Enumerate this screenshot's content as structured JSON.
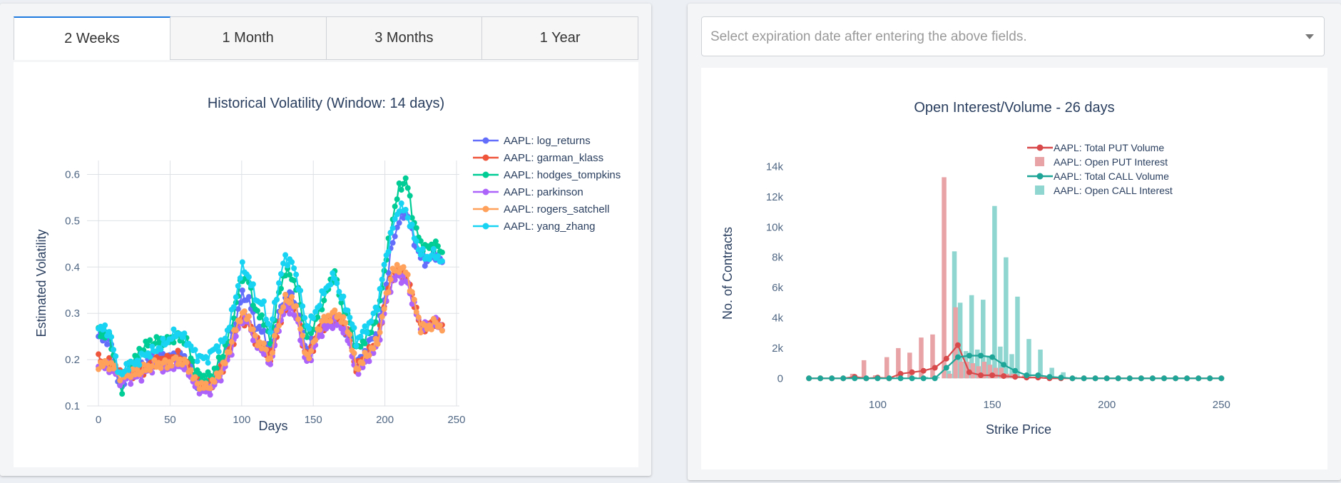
{
  "tabs": [
    {
      "label": "2 Weeks",
      "active": true
    },
    {
      "label": "1 Month",
      "active": false
    },
    {
      "label": "3 Months",
      "active": false
    },
    {
      "label": "1 Year",
      "active": false
    }
  ],
  "expiration_select": {
    "placeholder": "Select expiration date after entering the above fields."
  },
  "chart_data": [
    {
      "type": "line",
      "title": "Historical Volatility (Window: 14 days)",
      "xlabel": "Days",
      "ylabel": "Estimated Volatility",
      "xlim": [
        -8,
        252
      ],
      "ylim": [
        0.1,
        0.63
      ],
      "xticks": [
        0,
        50,
        100,
        150,
        200,
        250
      ],
      "yticks": [
        0.1,
        0.2,
        0.3,
        0.4,
        0.5,
        0.6
      ],
      "grid": true,
      "legend_position": "right",
      "markers": true,
      "keyframes_x": [
        0,
        8,
        12,
        16,
        20,
        25,
        32,
        40,
        48,
        55,
        62,
        68,
        75,
        80,
        88,
        95,
        100,
        105,
        110,
        115,
        120,
        125,
        130,
        135,
        140,
        145,
        150,
        155,
        160,
        165,
        170,
        175,
        180,
        185,
        190,
        195,
        200,
        205,
        210,
        215,
        220,
        225,
        230,
        235,
        240
      ],
      "series": [
        {
          "name": "AAPL: log_returns",
          "color": "#636efa",
          "values": [
            0.25,
            0.24,
            0.18,
            0.13,
            0.18,
            0.17,
            0.19,
            0.21,
            0.2,
            0.21,
            0.2,
            0.15,
            0.14,
            0.15,
            0.2,
            0.27,
            0.34,
            0.33,
            0.27,
            0.26,
            0.22,
            0.29,
            0.33,
            0.34,
            0.3,
            0.22,
            0.24,
            0.27,
            0.28,
            0.29,
            0.28,
            0.25,
            0.19,
            0.21,
            0.24,
            0.26,
            0.34,
            0.45,
            0.5,
            0.52,
            0.46,
            0.42,
            0.41,
            0.43,
            0.41
          ]
        },
        {
          "name": "AAPL: garman_klass",
          "color": "#ef553b",
          "values": [
            0.2,
            0.19,
            0.18,
            0.16,
            0.17,
            0.17,
            0.18,
            0.2,
            0.2,
            0.21,
            0.19,
            0.15,
            0.14,
            0.15,
            0.19,
            0.25,
            0.29,
            0.28,
            0.24,
            0.23,
            0.2,
            0.26,
            0.31,
            0.32,
            0.28,
            0.2,
            0.23,
            0.27,
            0.28,
            0.29,
            0.28,
            0.25,
            0.18,
            0.2,
            0.22,
            0.24,
            0.32,
            0.38,
            0.39,
            0.38,
            0.33,
            0.27,
            0.27,
            0.28,
            0.27
          ]
        },
        {
          "name": "AAPL: hodges_tompkins",
          "color": "#00cc96",
          "values": [
            0.26,
            0.25,
            0.18,
            0.13,
            0.18,
            0.2,
            0.23,
            0.24,
            0.24,
            0.25,
            0.24,
            0.17,
            0.16,
            0.17,
            0.22,
            0.3,
            0.38,
            0.37,
            0.3,
            0.29,
            0.24,
            0.33,
            0.39,
            0.38,
            0.34,
            0.25,
            0.27,
            0.31,
            0.35,
            0.39,
            0.31,
            0.29,
            0.22,
            0.24,
            0.26,
            0.3,
            0.4,
            0.5,
            0.57,
            0.59,
            0.5,
            0.45,
            0.44,
            0.45,
            0.43
          ]
        },
        {
          "name": "AAPL: parkinson",
          "color": "#ab63fa",
          "values": [
            0.19,
            0.18,
            0.17,
            0.15,
            0.16,
            0.16,
            0.17,
            0.19,
            0.18,
            0.19,
            0.18,
            0.14,
            0.13,
            0.14,
            0.18,
            0.24,
            0.29,
            0.28,
            0.23,
            0.22,
            0.19,
            0.26,
            0.31,
            0.31,
            0.27,
            0.19,
            0.22,
            0.26,
            0.27,
            0.28,
            0.27,
            0.24,
            0.17,
            0.19,
            0.21,
            0.23,
            0.31,
            0.37,
            0.38,
            0.37,
            0.32,
            0.27,
            0.27,
            0.28,
            0.27
          ]
        },
        {
          "name": "AAPL: rogers_satchell",
          "color": "#ffa15a",
          "values": [
            0.19,
            0.19,
            0.18,
            0.16,
            0.17,
            0.17,
            0.18,
            0.19,
            0.19,
            0.2,
            0.19,
            0.15,
            0.14,
            0.15,
            0.19,
            0.26,
            0.3,
            0.29,
            0.24,
            0.23,
            0.2,
            0.27,
            0.33,
            0.33,
            0.29,
            0.2,
            0.23,
            0.28,
            0.29,
            0.3,
            0.29,
            0.26,
            0.18,
            0.2,
            0.22,
            0.24,
            0.32,
            0.39,
            0.4,
            0.39,
            0.33,
            0.27,
            0.27,
            0.28,
            0.27
          ]
        },
        {
          "name": "AAPL: yang_zhang",
          "color": "#19d3f3",
          "values": [
            0.27,
            0.26,
            0.2,
            0.16,
            0.19,
            0.19,
            0.21,
            0.22,
            0.24,
            0.26,
            0.24,
            0.21,
            0.2,
            0.22,
            0.24,
            0.32,
            0.4,
            0.38,
            0.33,
            0.32,
            0.26,
            0.35,
            0.42,
            0.41,
            0.36,
            0.27,
            0.29,
            0.33,
            0.36,
            0.38,
            0.33,
            0.3,
            0.24,
            0.26,
            0.28,
            0.32,
            0.41,
            0.48,
            0.53,
            0.52,
            0.47,
            0.43,
            0.42,
            0.43,
            0.41
          ]
        }
      ]
    },
    {
      "type": "bar+line",
      "title": "Open Interest/Volume - 26 days",
      "xlabel": "Strike Price",
      "ylabel": "No. of Contracts",
      "xlim": [
        65,
        258
      ],
      "ylim": [
        -600,
        14500
      ],
      "xticks": [
        100,
        150,
        200,
        250
      ],
      "yticks": [
        0,
        2000,
        4000,
        6000,
        8000,
        10000,
        12000,
        14000
      ],
      "ytick_labels": [
        "0",
        "2k",
        "4k",
        "6k",
        "8k",
        "10k",
        "12k",
        "14k"
      ],
      "grid": false,
      "legend_position": "top-right",
      "bars": {
        "put_color": "#e8a3a6",
        "call_color": "#8fd6d1",
        "strikes": [
          90,
          95,
          100,
          105,
          110,
          115,
          120,
          125,
          130,
          132.5,
          135,
          137.5,
          140,
          142.5,
          145,
          147.5,
          150,
          152.5,
          155,
          157.5,
          160,
          165,
          170,
          175,
          180,
          185
        ],
        "put_values": [
          300,
          1200,
          200,
          1400,
          2000,
          1700,
          2700,
          2900,
          13300,
          300,
          4700,
          1100,
          1100,
          1000,
          800,
          1100,
          900,
          700,
          700,
          300,
          300,
          200,
          100,
          100,
          100,
          0
        ],
        "call_values": [
          50,
          50,
          50,
          50,
          50,
          100,
          100,
          100,
          500,
          8400,
          5000,
          1800,
          5500,
          1900,
          5200,
          1500,
          11400,
          2100,
          8000,
          1600,
          5400,
          2600,
          1900,
          700,
          400,
          100
        ]
      },
      "series": [
        {
          "name": "AAPL: Total PUT Volume",
          "color": "#d8494b",
          "x": [
            70,
            75,
            80,
            85,
            90,
            95,
            100,
            105,
            110,
            115,
            120,
            125,
            130,
            135,
            140,
            145,
            150,
            155,
            160,
            165,
            170,
            175,
            180,
            185,
            190,
            195,
            200,
            205,
            210,
            215,
            220,
            225,
            230,
            235,
            240,
            245,
            250
          ],
          "values": [
            0,
            0,
            0,
            0,
            100,
            0,
            50,
            0,
            300,
            400,
            500,
            700,
            1300,
            2200,
            400,
            200,
            200,
            150,
            100,
            50,
            50,
            0,
            0,
            0,
            0,
            0,
            0,
            0,
            0,
            0,
            0,
            0,
            0,
            0,
            0,
            0,
            0
          ]
        },
        {
          "name": "AAPL: Open PUT Interest",
          "color": "#e8a3a6",
          "legend_only": true
        },
        {
          "name": "AAPL: Total CALL Volume",
          "color": "#1fa598",
          "x": [
            70,
            75,
            80,
            85,
            90,
            95,
            100,
            105,
            110,
            115,
            120,
            125,
            130,
            135,
            140,
            145,
            150,
            155,
            160,
            165,
            170,
            175,
            180,
            185,
            190,
            195,
            200,
            205,
            210,
            215,
            220,
            225,
            230,
            235,
            240,
            245,
            250
          ],
          "values": [
            0,
            0,
            0,
            0,
            0,
            0,
            0,
            0,
            0,
            0,
            0,
            0,
            700,
            1400,
            1500,
            1500,
            1400,
            900,
            500,
            200,
            200,
            100,
            50,
            0,
            0,
            0,
            0,
            0,
            0,
            0,
            0,
            0,
            0,
            0,
            0,
            0,
            0
          ]
        },
        {
          "name": "AAPL: Open CALL Interest",
          "color": "#8fd6d1",
          "legend_only": true
        }
      ]
    }
  ]
}
